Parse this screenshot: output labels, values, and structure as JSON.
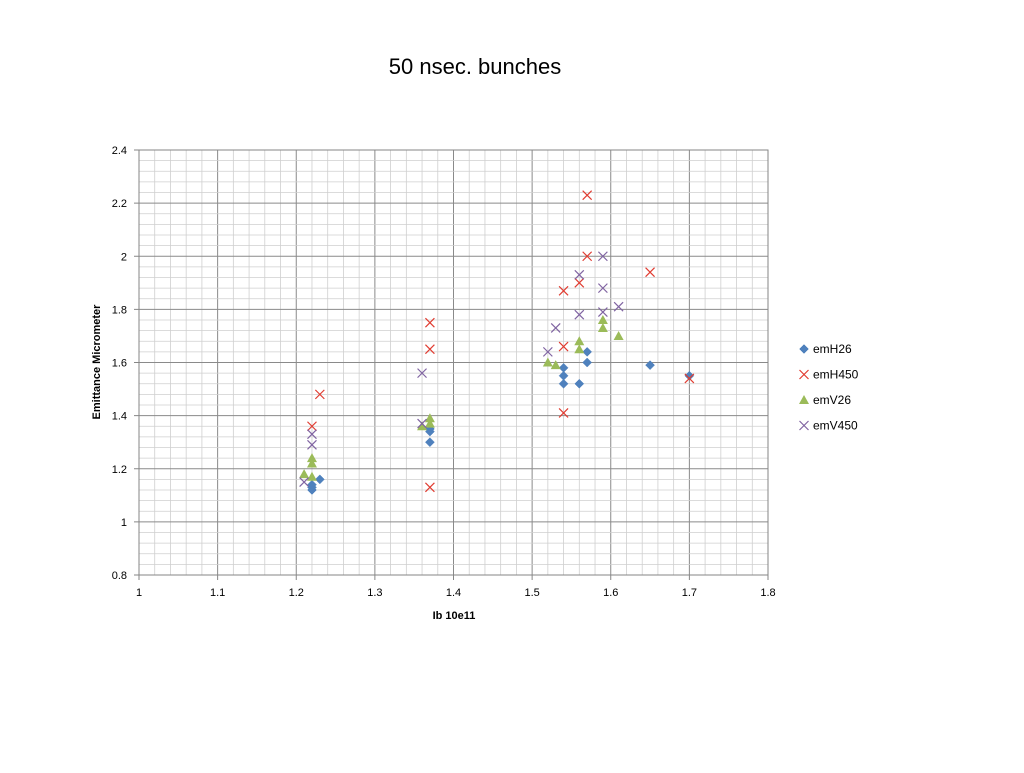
{
  "chart_data": {
    "type": "scatter",
    "title": "50 nsec. bunches",
    "xlabel": "Ib  10e11",
    "ylabel": "Emittance  Micrometer",
    "xlim": [
      1,
      1.8
    ],
    "ylim": [
      0.8,
      2.4
    ],
    "x_major_ticks": [
      "1",
      "1.1",
      "1.2",
      "1.3",
      "1.4",
      "1.5",
      "1.6",
      "1.7",
      "1.8"
    ],
    "y_major_ticks": [
      "0.8",
      "1",
      "1.2",
      "1.4",
      "1.6",
      "1.8",
      "2",
      "2.2",
      "2.4"
    ],
    "grid": true,
    "legend_position": "right",
    "series": [
      {
        "name": "emH26",
        "marker": "diamond",
        "color": "#4F81BD",
        "points": [
          [
            1.22,
            1.12
          ],
          [
            1.22,
            1.13
          ],
          [
            1.22,
            1.14
          ],
          [
            1.23,
            1.16
          ],
          [
            1.37,
            1.3
          ],
          [
            1.37,
            1.34
          ],
          [
            1.37,
            1.35
          ],
          [
            1.54,
            1.52
          ],
          [
            1.54,
            1.55
          ],
          [
            1.54,
            1.58
          ],
          [
            1.56,
            1.52
          ],
          [
            1.57,
            1.6
          ],
          [
            1.57,
            1.64
          ],
          [
            1.65,
            1.59
          ],
          [
            1.7,
            1.55
          ]
        ]
      },
      {
        "name": "emH450",
        "marker": "x",
        "color": "#E03C31",
        "points": [
          [
            1.22,
            1.36
          ],
          [
            1.23,
            1.48
          ],
          [
            1.37,
            1.13
          ],
          [
            1.37,
            1.65
          ],
          [
            1.37,
            1.75
          ],
          [
            1.54,
            1.41
          ],
          [
            1.54,
            1.66
          ],
          [
            1.54,
            1.87
          ],
          [
            1.56,
            1.9
          ],
          [
            1.57,
            2.0
          ],
          [
            1.57,
            2.23
          ],
          [
            1.65,
            1.94
          ],
          [
            1.7,
            1.54
          ]
        ]
      },
      {
        "name": "emV26",
        "marker": "triangle",
        "color": "#9BBB59",
        "points": [
          [
            1.21,
            1.18
          ],
          [
            1.22,
            1.17
          ],
          [
            1.22,
            1.22
          ],
          [
            1.22,
            1.24
          ],
          [
            1.36,
            1.36
          ],
          [
            1.37,
            1.37
          ],
          [
            1.37,
            1.39
          ],
          [
            1.52,
            1.6
          ],
          [
            1.53,
            1.59
          ],
          [
            1.56,
            1.65
          ],
          [
            1.56,
            1.68
          ],
          [
            1.59,
            1.73
          ],
          [
            1.59,
            1.76
          ],
          [
            1.61,
            1.7
          ]
        ]
      },
      {
        "name": "emV450",
        "marker": "x",
        "color": "#8064A2",
        "points": [
          [
            1.21,
            1.15
          ],
          [
            1.22,
            1.29
          ],
          [
            1.22,
            1.33
          ],
          [
            1.36,
            1.37
          ],
          [
            1.36,
            1.56
          ],
          [
            1.52,
            1.64
          ],
          [
            1.53,
            1.73
          ],
          [
            1.56,
            1.78
          ],
          [
            1.56,
            1.93
          ],
          [
            1.59,
            1.79
          ],
          [
            1.59,
            1.88
          ],
          [
            1.59,
            2.0
          ],
          [
            1.61,
            1.81
          ]
        ]
      }
    ]
  }
}
